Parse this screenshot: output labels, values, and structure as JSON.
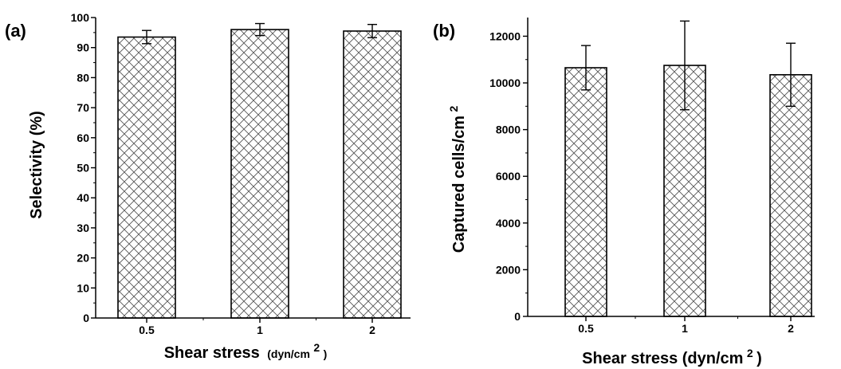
{
  "chart_data": [
    {
      "panel_label": "(a)",
      "type": "bar",
      "categories": [
        "0.5",
        "1",
        "2"
      ],
      "values": [
        93.5,
        96,
        95.5
      ],
      "errors": [
        2.2,
        2.0,
        2.2
      ],
      "ylim": [
        0,
        100
      ],
      "yticks": [
        "0",
        "10",
        "20",
        "30",
        "40",
        "50",
        "60",
        "70",
        "80",
        "90",
        "100"
      ],
      "ytick_values": [
        0,
        10,
        20,
        30,
        40,
        50,
        60,
        70,
        80,
        90,
        100
      ],
      "ylabel": "Selectivity (%)",
      "xlabel": "Shear stress",
      "xlabel_unit": "(dyn/cm",
      "xlabel_sup": "2",
      "xlabel_close": ")",
      "fill_pattern": "crosshatch",
      "grid": false,
      "legend": "none"
    },
    {
      "panel_label": "(b)",
      "type": "bar",
      "categories": [
        "0.5",
        "1",
        "2"
      ],
      "values": [
        10650,
        10750,
        10350
      ],
      "errors": [
        950,
        1900,
        1350
      ],
      "ylim": [
        0,
        12800
      ],
      "yticks": [
        "0",
        "2000",
        "4000",
        "6000",
        "8000",
        "10000",
        "12000"
      ],
      "ytick_values": [
        0,
        2000,
        4000,
        6000,
        8000,
        10000,
        12000
      ],
      "ylabel": "Captured cells/cm",
      "ylabel_sup": "2",
      "xlabel": "Shear stress (dyn/cm",
      "xlabel_sup": "2",
      "xlabel_close": ")",
      "fill_pattern": "crosshatch",
      "grid": false,
      "legend": "none"
    }
  ]
}
